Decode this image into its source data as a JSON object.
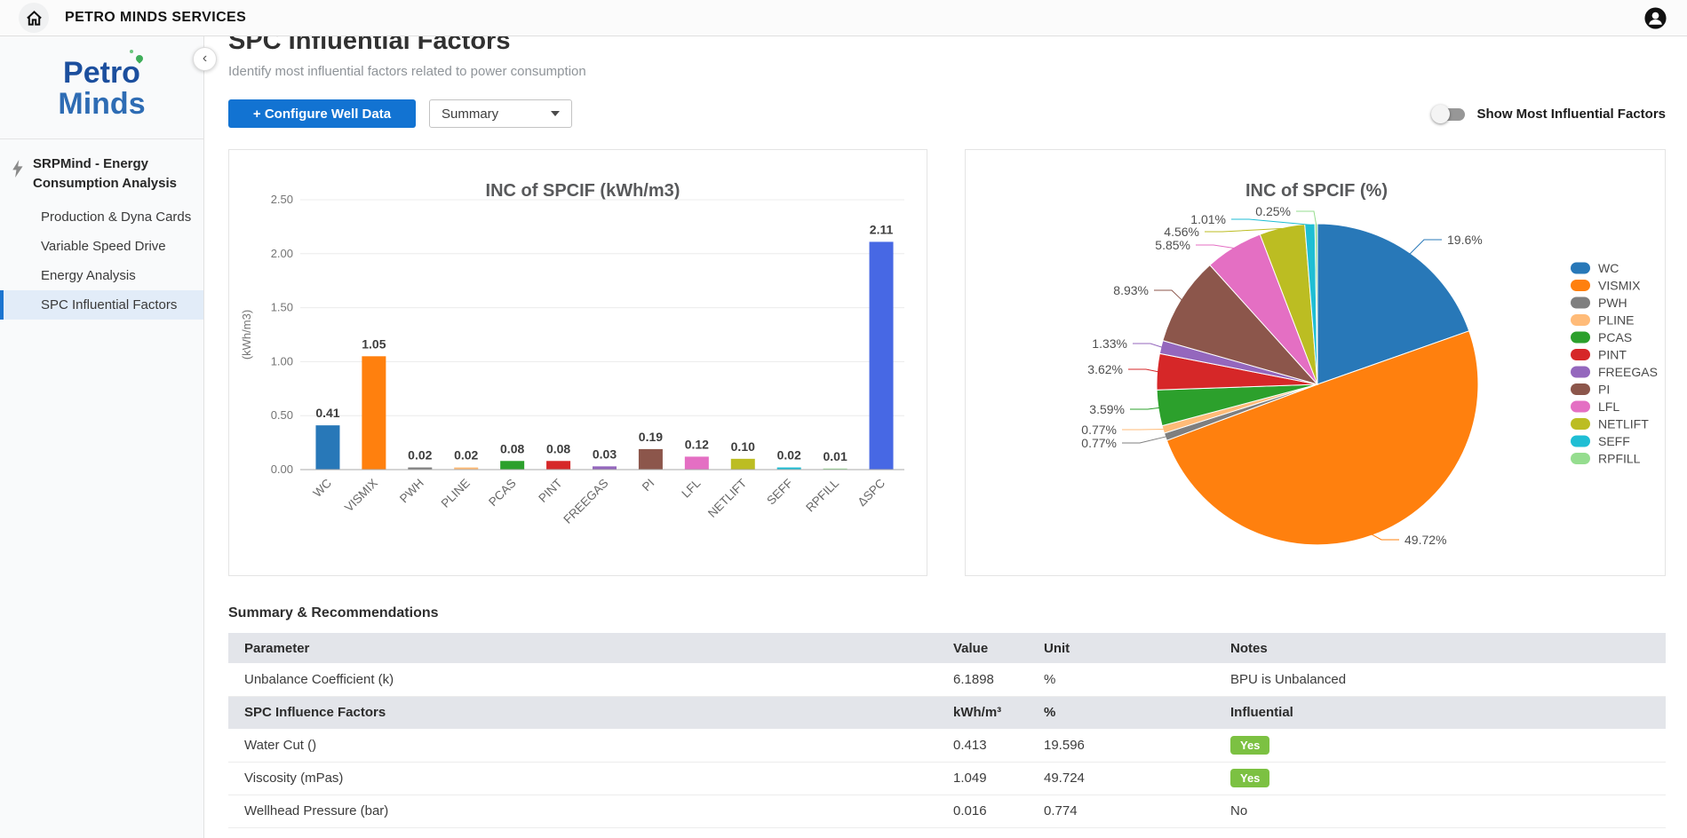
{
  "topbar": {
    "title": "PETRO MINDS SERVICES"
  },
  "sidebar": {
    "logo": {
      "line1": "Petro",
      "line2": "Minds"
    },
    "section_label": "SRPMind - Energy Consumption Analysis",
    "items": [
      {
        "label": "Production & Dyna Cards",
        "active": false
      },
      {
        "label": "Variable Speed Drive",
        "active": false
      },
      {
        "label": "Energy Analysis",
        "active": false
      },
      {
        "label": "SPC Influential Factors",
        "active": true
      }
    ]
  },
  "header": {
    "title": "SPC Influential Factors",
    "subtitle": "Identify most influential factors related to power consumption"
  },
  "controls": {
    "configure_button": "+ Configure Well Data",
    "view_select_value": "Summary",
    "toggle_label": "Show Most Influential Factors",
    "toggle_state": "off"
  },
  "chart_data": [
    {
      "type": "bar",
      "title": "INC of SPCIF (kWh/m3)",
      "ylabel": "(kWh/m3)",
      "ylim": [
        0,
        2.5
      ],
      "yticks": [
        "0.00",
        "0.50",
        "1.00",
        "1.50",
        "2.00",
        "2.50"
      ],
      "grid": true,
      "categories": [
        "WC",
        "VISMIX",
        "PWH",
        "PLINE",
        "PCAS",
        "PINT",
        "FREEGAS",
        "PI",
        "LFL",
        "NETLIFT",
        "SEFF",
        "RPFILL",
        "ΔSPC"
      ],
      "values": [
        0.41,
        1.05,
        0.02,
        0.02,
        0.08,
        0.08,
        0.03,
        0.19,
        0.12,
        0.1,
        0.02,
        0.01,
        2.11
      ],
      "value_labels": [
        "0.41",
        "1.05",
        "0.02",
        "0.02",
        "0.08",
        "0.08",
        "0.03",
        "0.19",
        "0.12",
        "0.10",
        "0.02",
        "0.01",
        "2.11"
      ],
      "colors": [
        "#2878b8",
        "#ff800e",
        "#7f7f7f",
        "#ffbb78",
        "#2ca02c",
        "#d62728",
        "#9467bd",
        "#8c564b",
        "#e46fc3",
        "#bcbd22",
        "#1fbed4",
        "#95dd8f",
        "#4768e4"
      ]
    },
    {
      "type": "pie",
      "title": "INC of SPCIF (%)",
      "legend_position": "right",
      "labels": [
        "WC",
        "VISMIX",
        "PWH",
        "PLINE",
        "PCAS",
        "PINT",
        "FREEGAS",
        "PI",
        "LFL",
        "NETLIFT",
        "SEFF",
        "RPFILL"
      ],
      "values": [
        19.6,
        49.72,
        0.77,
        0.77,
        3.59,
        3.62,
        1.33,
        8.93,
        5.85,
        4.56,
        1.01,
        0.25
      ],
      "percent_labels": [
        "19.6%",
        "49.72%",
        "0.77%",
        "0.77%",
        "3.59%",
        "3.62%",
        "1.33%",
        "8.93%",
        "5.85%",
        "4.56%",
        "1.01%",
        "0.25%"
      ],
      "colors": [
        "#2878b8",
        "#ff800e",
        "#7f7f7f",
        "#ffbb78",
        "#2ca02c",
        "#d62728",
        "#9467bd",
        "#8c564b",
        "#e46fc3",
        "#bcbd22",
        "#1fbed4",
        "#95dd8f"
      ]
    }
  ],
  "summary": {
    "title": "Summary & Recommendations",
    "columns": [
      "Parameter",
      "Value",
      "Unit",
      "Notes"
    ],
    "rows": [
      {
        "parameter": "Unbalance Coefficient (k)",
        "value": "6.1898",
        "unit": "%",
        "notes": "BPU is Unbalanced",
        "row_type": "data",
        "badge": false
      },
      {
        "parameter": "SPC Influence Factors",
        "value": "kWh/m³",
        "unit": "%",
        "notes": "Influential",
        "row_type": "subheader",
        "badge": false
      },
      {
        "parameter": "Water Cut ()",
        "value": "0.413",
        "unit": "19.596",
        "notes": "Yes",
        "row_type": "data",
        "badge": true
      },
      {
        "parameter": "Viscosity (mPas)",
        "value": "1.049",
        "unit": "49.724",
        "notes": "Yes",
        "row_type": "data",
        "badge": true
      },
      {
        "parameter": "Wellhead Pressure (bar)",
        "value": "0.016",
        "unit": "0.774",
        "notes": "No",
        "row_type": "data",
        "badge": false
      }
    ]
  },
  "colors": {
    "accent_blue": "#1273d2",
    "selected_nav_bg": "#e2ecf8",
    "badge_green": "#7cc142",
    "logo_blue_dark": "#1c4f9e",
    "logo_blue": "#2e6cb4"
  }
}
